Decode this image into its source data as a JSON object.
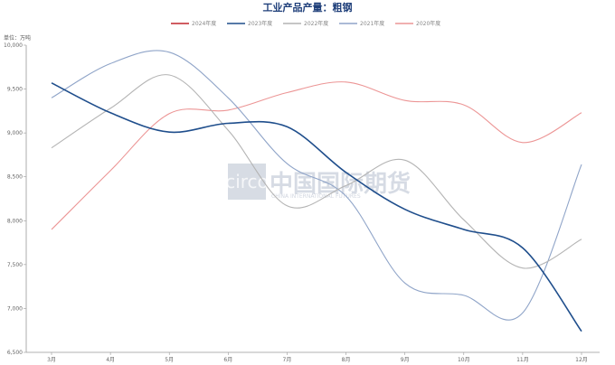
{
  "chart_data": {
    "type": "line",
    "title": "工业产品产量：粗钢",
    "unit_label": "单位：万吨",
    "categories": [
      "3月",
      "4月",
      "5月",
      "6月",
      "7月",
      "8月",
      "9月",
      "10月",
      "11月",
      "12月"
    ],
    "y_ticks": [
      "6,500",
      "7,000",
      "7,500",
      "8,000",
      "8,500",
      "9,000",
      "9,500",
      "10,000"
    ],
    "ylim": [
      6500,
      10000
    ],
    "grid": false,
    "legend_position": "top-center",
    "watermark": {
      "logo": "circo",
      "name": "中国国际期货",
      "name_en": "CHINA INTERNATIONAL FUTURES"
    },
    "series": [
      {
        "name": "2024年度",
        "color": "#c0272d",
        "values": [
          null,
          null,
          null,
          null,
          null,
          null,
          null,
          null,
          null,
          null
        ]
      },
      {
        "name": "2023年度",
        "color": "#1f4e8c",
        "values": [
          9570,
          9230,
          9010,
          9110,
          9070,
          8550,
          8130,
          7900,
          7690,
          6740
        ]
      },
      {
        "name": "2022年度",
        "color": "#b4b4b4",
        "values": [
          8830,
          9280,
          9660,
          9030,
          8170,
          8400,
          8690,
          8010,
          7460,
          7790
        ]
      },
      {
        "name": "2021年度",
        "color": "#8fa4c8",
        "values": [
          9400,
          9790,
          9920,
          9400,
          8650,
          8280,
          7290,
          7150,
          6950,
          8640
        ]
      },
      {
        "name": "2020年度",
        "color": "#ec9595",
        "values": [
          7900,
          8570,
          9220,
          9260,
          9460,
          9580,
          9370,
          9320,
          8890,
          9230
        ]
      }
    ]
  }
}
